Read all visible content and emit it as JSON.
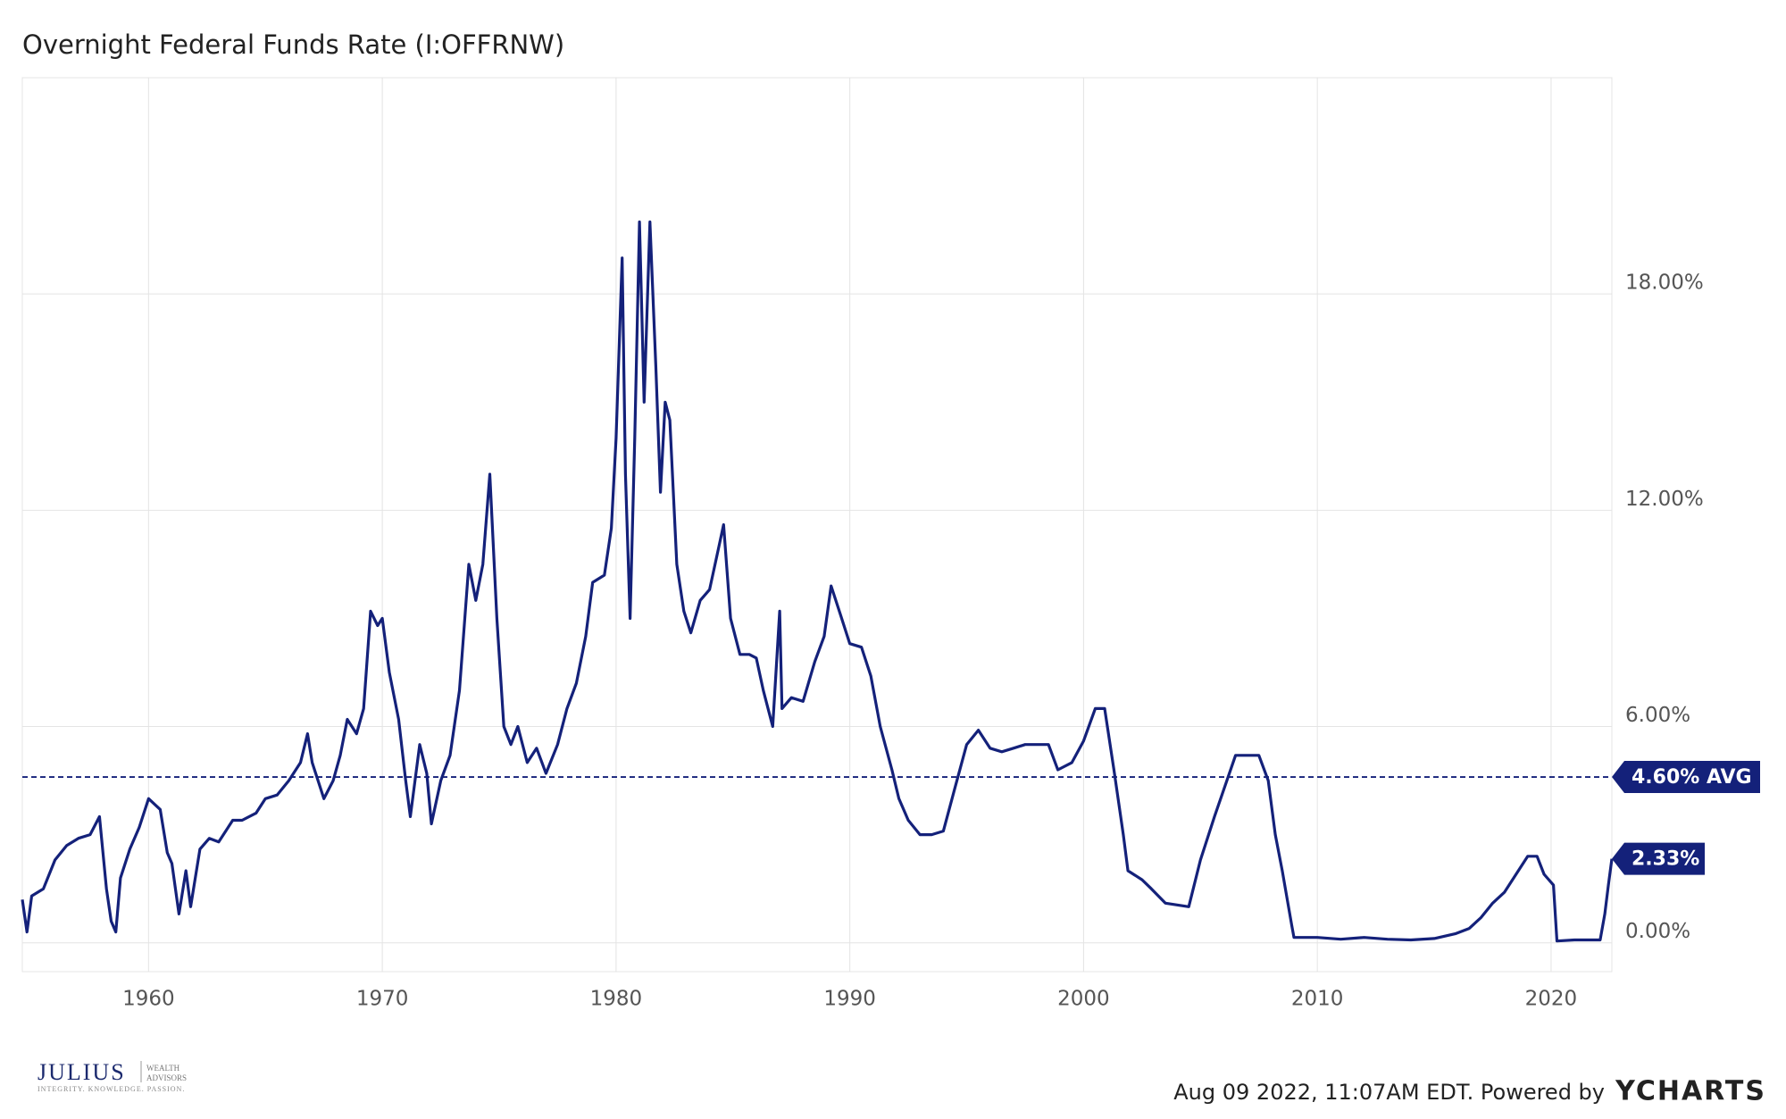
{
  "chart_data": {
    "type": "line",
    "title": "Overnight Federal Funds Rate (I:OFFRNW)",
    "x": [
      1954.6,
      1954.8,
      1955.0,
      1955.5,
      1956.0,
      1956.5,
      1957.0,
      1957.5,
      1957.9,
      1958.2,
      1958.4,
      1958.6,
      1958.8,
      1959.2,
      1959.6,
      1960.0,
      1960.5,
      1960.8,
      1961.0,
      1961.3,
      1961.6,
      1961.8,
      1962.2,
      1962.6,
      1963.0,
      1963.6,
      1964.0,
      1964.6,
      1965.0,
      1965.5,
      1966.0,
      1966.5,
      1966.8,
      1967.0,
      1967.5,
      1967.9,
      1968.2,
      1968.5,
      1968.9,
      1969.2,
      1969.5,
      1969.8,
      1970.0,
      1970.3,
      1970.7,
      1971.0,
      1971.2,
      1971.6,
      1971.9,
      1972.1,
      1972.5,
      1972.9,
      1973.3,
      1973.7,
      1974.0,
      1974.3,
      1974.6,
      1974.9,
      1975.2,
      1975.5,
      1975.8,
      1976.2,
      1976.6,
      1977.0,
      1977.5,
      1977.9,
      1978.3,
      1978.7,
      1979.0,
      1979.5,
      1979.8,
      1980.0,
      1980.26,
      1980.4,
      1980.6,
      1980.8,
      1981.0,
      1981.2,
      1981.45,
      1981.7,
      1981.9,
      1982.1,
      1982.3,
      1982.6,
      1982.9,
      1983.2,
      1983.6,
      1984.0,
      1984.4,
      1984.6,
      1984.9,
      1985.3,
      1985.7,
      1986.0,
      1986.3,
      1986.7,
      1987.0,
      1987.1,
      1987.5,
      1988.0,
      1988.5,
      1988.9,
      1989.2,
      1989.6,
      1990.0,
      1990.5,
      1990.9,
      1991.3,
      1991.8,
      1992.1,
      1992.5,
      1993.0,
      1993.5,
      1994.0,
      1994.5,
      1995.0,
      1995.5,
      1996.0,
      1996.5,
      1997.0,
      1997.5,
      1998.5,
      1998.9,
      1999.5,
      2000.0,
      2000.5,
      2000.9,
      2001.3,
      2001.7,
      2001.9,
      2002.5,
      2002.9,
      2003.5,
      2004.5,
      2005.0,
      2005.6,
      2006.5,
      2007.5,
      2007.9,
      2008.2,
      2008.5,
      2008.9,
      2009.0,
      2010.0,
      2011.0,
      2012.0,
      2013.0,
      2014.0,
      2015.0,
      2015.9,
      2016.5,
      2017.0,
      2017.5,
      2018.0,
      2018.5,
      2019.0,
      2019.4,
      2019.7,
      2020.1,
      2020.25,
      2021.0,
      2022.1,
      2022.3,
      2022.45,
      2022.6
    ],
    "series": [
      {
        "name": "Overnight Federal Funds Rate",
        "color": "#14217a",
        "values": [
          1.2,
          0.3,
          1.3,
          1.5,
          2.3,
          2.7,
          2.9,
          3.0,
          3.5,
          1.5,
          0.6,
          0.3,
          1.8,
          2.6,
          3.2,
          4.0,
          3.7,
          2.5,
          2.2,
          0.8,
          2.0,
          1.0,
          2.6,
          2.9,
          2.8,
          3.4,
          3.4,
          3.6,
          4.0,
          4.1,
          4.5,
          5.0,
          5.8,
          5.0,
          4.0,
          4.5,
          5.2,
          6.2,
          5.8,
          6.5,
          9.2,
          8.8,
          9.0,
          7.5,
          6.2,
          4.5,
          3.5,
          5.5,
          4.7,
          3.3,
          4.5,
          5.2,
          7.0,
          10.5,
          9.5,
          10.5,
          13.0,
          9.0,
          6.0,
          5.5,
          6.0,
          5.0,
          5.4,
          4.7,
          5.5,
          6.5,
          7.2,
          8.5,
          10.0,
          10.2,
          11.5,
          14.0,
          19.0,
          13.0,
          9.0,
          14.0,
          20.0,
          15.0,
          20.0,
          16.0,
          12.5,
          15.0,
          14.5,
          10.5,
          9.2,
          8.6,
          9.5,
          9.8,
          11.0,
          11.6,
          9.0,
          8.0,
          8.0,
          7.9,
          7.0,
          6.0,
          9.2,
          6.5,
          6.8,
          6.7,
          7.8,
          8.5,
          9.9,
          9.1,
          8.3,
          8.2,
          7.4,
          6.0,
          4.8,
          4.0,
          3.4,
          3.0,
          3.0,
          3.1,
          4.3,
          5.5,
          5.9,
          5.4,
          5.3,
          5.4,
          5.5,
          5.5,
          4.8,
          5.0,
          5.6,
          6.5,
          6.5,
          4.8,
          3.0,
          2.0,
          1.75,
          1.5,
          1.1,
          1.0,
          2.3,
          3.5,
          5.2,
          5.2,
          4.5,
          3.0,
          2.0,
          0.5,
          0.15,
          0.15,
          0.1,
          0.15,
          0.1,
          0.08,
          0.12,
          0.25,
          0.4,
          0.7,
          1.1,
          1.4,
          1.9,
          2.4,
          2.4,
          1.9,
          1.6,
          0.05,
          0.08,
          0.08,
          0.8,
          1.6,
          2.33
        ]
      }
    ],
    "xlim": [
      1954.6,
      2022.6
    ],
    "xticks": [
      1960,
      1970,
      1980,
      1990,
      2000,
      2010,
      2020
    ],
    "ylim": [
      -0.8,
      24
    ],
    "yticks": [
      {
        "value": 0,
        "label": "0.00%"
      },
      {
        "value": 6,
        "label": "6.00%"
      },
      {
        "value": 12,
        "label": "12.00%"
      },
      {
        "value": 18,
        "label": "18.00%"
      }
    ],
    "grid": true,
    "annotations": [
      {
        "value": 4.6,
        "label": "4.60% AVG"
      },
      {
        "value": 2.33,
        "label": "2.33%"
      }
    ]
  },
  "footer": {
    "timestamp": "Aug 09 2022, 11:07AM EDT. Powered by",
    "brand": "YCHARTS",
    "logo": {
      "name": "JULIUS",
      "sub1": "WEALTH",
      "sub2": "ADVISORS",
      "motto": "INTEGRITY. KNOWLEDGE. PASSION."
    }
  }
}
